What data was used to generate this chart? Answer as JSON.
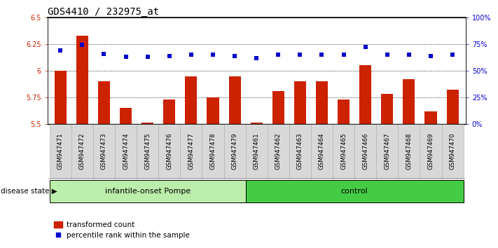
{
  "title": "GDS4410 / 232975_at",
  "samples": [
    "GSM947471",
    "GSM947472",
    "GSM947473",
    "GSM947474",
    "GSM947475",
    "GSM947476",
    "GSM947477",
    "GSM947478",
    "GSM947479",
    "GSM947461",
    "GSM947462",
    "GSM947463",
    "GSM947464",
    "GSM947465",
    "GSM947466",
    "GSM947467",
    "GSM947468",
    "GSM947469",
    "GSM947470"
  ],
  "bar_values": [
    6.0,
    6.33,
    5.9,
    5.65,
    5.51,
    5.73,
    5.95,
    5.75,
    5.95,
    5.51,
    5.81,
    5.9,
    5.9,
    5.73,
    6.05,
    5.78,
    5.92,
    5.62,
    5.82
  ],
  "dot_values": [
    69,
    74,
    66,
    63,
    63,
    64,
    65,
    65,
    64,
    62,
    65,
    65,
    65,
    65,
    72,
    65,
    65,
    64,
    65
  ],
  "bar_color": "#cc2200",
  "dot_color": "#0000cc",
  "ylim_left": [
    5.5,
    6.5
  ],
  "ylim_right": [
    0,
    100
  ],
  "yticks_left": [
    5.5,
    5.75,
    6.0,
    6.25,
    6.5
  ],
  "yticks_right": [
    0,
    25,
    50,
    75,
    100
  ],
  "ytick_labels_right": [
    "0%",
    "25%",
    "50%",
    "75%",
    "100%"
  ],
  "hlines": [
    5.75,
    6.0,
    6.25
  ],
  "group1_label": "infantile-onset Pompe",
  "group2_label": "control",
  "group1_count": 9,
  "group2_count": 10,
  "disease_state_label": "disease state",
  "legend_bar_label": "transformed count",
  "legend_dot_label": "percentile rank within the sample",
  "group1_color": "#bbeeaa",
  "group2_color": "#44cc44",
  "title_fontsize": 10,
  "tick_label_fontsize": 7,
  "bar_width": 0.55
}
